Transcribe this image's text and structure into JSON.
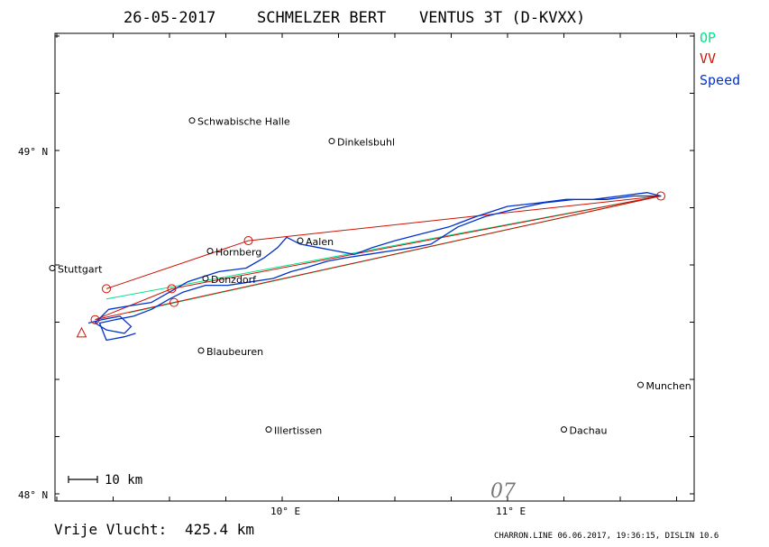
{
  "title": {
    "date": "26-05-2017",
    "pilot": "SCHMELZER BERT",
    "glider": "VENTUS 3T (D-KVXX)"
  },
  "legend": [
    {
      "label": "OP",
      "color": "#00e38c"
    },
    {
      "label": "VV",
      "color": "#d01000"
    },
    {
      "label": "Speed",
      "color": "#0033cc"
    }
  ],
  "axes": {
    "lat_ticks": [
      {
        "label": "49° N",
        "lat": 49.0
      },
      {
        "label": "48° N",
        "lat": 48.0
      }
    ],
    "lon_ticks": [
      {
        "label": "10° E",
        "lon": 10.0
      },
      {
        "label": "11° E",
        "lon": 11.0
      }
    ]
  },
  "places": [
    {
      "name": "Schwabische Halle",
      "lon": 9.6,
      "lat": 49.09
    },
    {
      "name": "Dinkelsbuhl",
      "lon": 10.22,
      "lat": 49.03
    },
    {
      "name": "Stuttgart",
      "lon": 8.98,
      "lat": 48.66
    },
    {
      "name": "Hornberg",
      "lon": 9.68,
      "lat": 48.71
    },
    {
      "name": "Aalen",
      "lon": 10.08,
      "lat": 48.74
    },
    {
      "name": "Donzdorf",
      "lon": 9.66,
      "lat": 48.63
    },
    {
      "name": "Blaubeuren",
      "lon": 9.64,
      "lat": 48.42
    },
    {
      "name": "Munchen",
      "lon": 11.59,
      "lat": 48.32
    },
    {
      "name": "Illertissen",
      "lon": 9.94,
      "lat": 48.19
    },
    {
      "name": "Dachau",
      "lon": 11.25,
      "lat": 48.19
    }
  ],
  "scale_bar": "10 km",
  "annotation": "07",
  "footer": {
    "distance_label": "Vrije Vlucht:",
    "distance_value": "425.4 km",
    "credit": "CHARRON.LINE 06.06.2017, 19:36:15, DISLIN 10.6"
  },
  "flight": {
    "start": {
      "lon": 9.11,
      "lat": 48.47
    },
    "turnpoints": [
      {
        "lon": 9.17,
        "lat": 48.51
      },
      {
        "lon": 9.22,
        "lat": 48.6
      },
      {
        "lon": 9.52,
        "lat": 48.56
      },
      {
        "lon": 9.51,
        "lat": 48.6
      },
      {
        "lon": 9.85,
        "lat": 48.74
      },
      {
        "lon": 11.68,
        "lat": 48.87
      }
    ],
    "op_lines": [
      [
        {
          "lon": 9.22,
          "lat": 48.57
        },
        {
          "lon": 11.68,
          "lat": 48.87
        }
      ],
      [
        {
          "lon": 9.32,
          "lat": 48.53
        },
        {
          "lon": 11.68,
          "lat": 48.87
        }
      ]
    ],
    "vv_lines": [
      [
        {
          "lon": 9.22,
          "lat": 48.6
        },
        {
          "lon": 9.85,
          "lat": 48.74
        },
        {
          "lon": 11.68,
          "lat": 48.87
        },
        {
          "lon": 9.52,
          "lat": 48.56
        },
        {
          "lon": 9.17,
          "lat": 48.51
        }
      ],
      [
        {
          "lon": 9.17,
          "lat": 48.51
        },
        {
          "lon": 9.51,
          "lat": 48.6
        },
        {
          "lon": 11.68,
          "lat": 48.87
        }
      ]
    ],
    "track": [
      {
        "lon": 9.14,
        "lat": 48.5
      },
      {
        "lon": 9.2,
        "lat": 48.51
      },
      {
        "lon": 9.28,
        "lat": 48.52
      },
      {
        "lon": 9.33,
        "lat": 48.49
      },
      {
        "lon": 9.3,
        "lat": 48.47
      },
      {
        "lon": 9.22,
        "lat": 48.48
      },
      {
        "lon": 9.17,
        "lat": 48.5
      },
      {
        "lon": 9.23,
        "lat": 48.54
      },
      {
        "lon": 9.32,
        "lat": 48.55
      },
      {
        "lon": 9.42,
        "lat": 48.56
      },
      {
        "lon": 9.5,
        "lat": 48.59
      },
      {
        "lon": 9.58,
        "lat": 48.62
      },
      {
        "lon": 9.72,
        "lat": 48.65
      },
      {
        "lon": 9.84,
        "lat": 48.66
      },
      {
        "lon": 9.92,
        "lat": 48.69
      },
      {
        "lon": 9.98,
        "lat": 48.72
      },
      {
        "lon": 10.02,
        "lat": 48.75
      },
      {
        "lon": 10.08,
        "lat": 48.73
      },
      {
        "lon": 10.16,
        "lat": 48.72
      },
      {
        "lon": 10.24,
        "lat": 48.71
      },
      {
        "lon": 10.32,
        "lat": 48.7
      },
      {
        "lon": 10.4,
        "lat": 48.72
      },
      {
        "lon": 10.5,
        "lat": 48.74
      },
      {
        "lon": 10.62,
        "lat": 48.76
      },
      {
        "lon": 10.74,
        "lat": 48.78
      },
      {
        "lon": 10.86,
        "lat": 48.81
      },
      {
        "lon": 11.0,
        "lat": 48.84
      },
      {
        "lon": 11.14,
        "lat": 48.85
      },
      {
        "lon": 11.26,
        "lat": 48.86
      },
      {
        "lon": 11.38,
        "lat": 48.86
      },
      {
        "lon": 11.5,
        "lat": 48.87
      },
      {
        "lon": 11.62,
        "lat": 48.88
      },
      {
        "lon": 11.68,
        "lat": 48.87
      },
      {
        "lon": 11.56,
        "lat": 48.87
      },
      {
        "lon": 11.44,
        "lat": 48.86
      },
      {
        "lon": 11.3,
        "lat": 48.86
      },
      {
        "lon": 11.16,
        "lat": 48.85
      },
      {
        "lon": 11.02,
        "lat": 48.83
      },
      {
        "lon": 10.9,
        "lat": 48.81
      },
      {
        "lon": 10.78,
        "lat": 48.78
      },
      {
        "lon": 10.66,
        "lat": 48.73
      },
      {
        "lon": 10.58,
        "lat": 48.72
      },
      {
        "lon": 10.48,
        "lat": 48.71
      },
      {
        "lon": 10.38,
        "lat": 48.7
      },
      {
        "lon": 10.28,
        "lat": 48.69
      },
      {
        "lon": 10.2,
        "lat": 48.68
      },
      {
        "lon": 10.1,
        "lat": 48.66
      },
      {
        "lon": 10.04,
        "lat": 48.65
      },
      {
        "lon": 9.96,
        "lat": 48.63
      },
      {
        "lon": 9.86,
        "lat": 48.62
      },
      {
        "lon": 9.76,
        "lat": 48.61
      },
      {
        "lon": 9.66,
        "lat": 48.61
      },
      {
        "lon": 9.56,
        "lat": 48.59
      },
      {
        "lon": 9.5,
        "lat": 48.57
      },
      {
        "lon": 9.42,
        "lat": 48.54
      },
      {
        "lon": 9.34,
        "lat": 48.52
      },
      {
        "lon": 9.26,
        "lat": 48.51
      },
      {
        "lon": 9.19,
        "lat": 48.5
      },
      {
        "lon": 9.22,
        "lat": 48.45
      },
      {
        "lon": 9.3,
        "lat": 48.46
      },
      {
        "lon": 9.35,
        "lat": 48.47
      }
    ]
  }
}
